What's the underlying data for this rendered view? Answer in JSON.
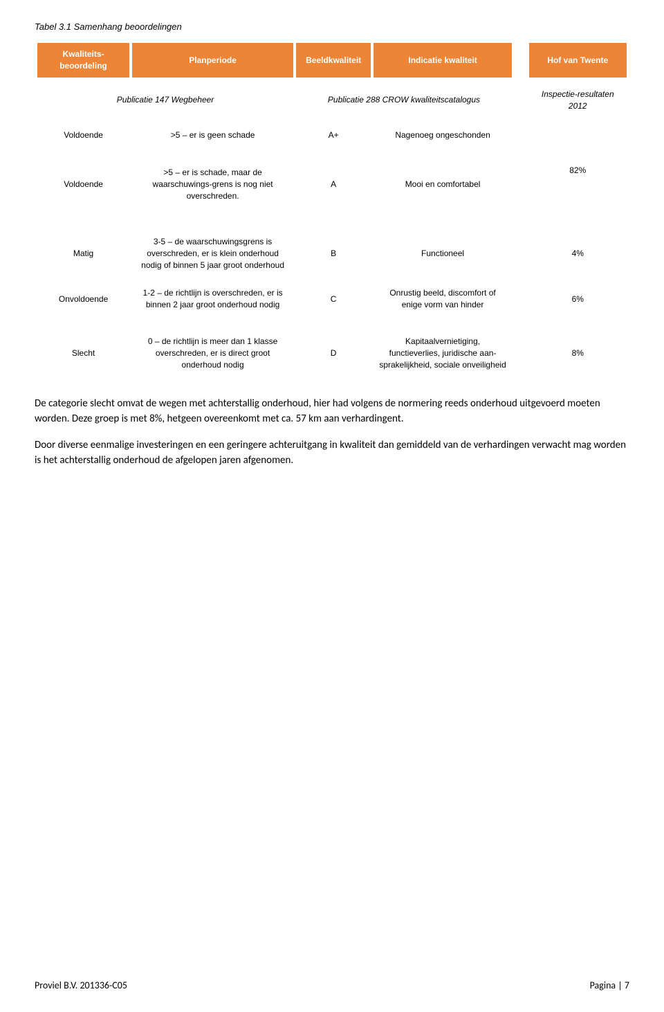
{
  "caption": "Tabel 3.1 Samenhang beoordelingen",
  "colors": {
    "header_bg": "#ee8435",
    "header_fg": "#ffffff",
    "page_bg": "#ffffff",
    "text": "#000000"
  },
  "fonts": {
    "table_family": "Verdana, Geneva, sans-serif",
    "body_family": "Calibri, Arial, sans-serif",
    "caption_size_pt": 10,
    "table_size_pt": 9,
    "body_size_pt": 11
  },
  "table": {
    "type": "table",
    "column_widths_pct": [
      16,
      28,
      13,
      24,
      2,
      17
    ],
    "headers": [
      "Kwaliteits-beoordeling",
      "Planperiode",
      "Beeldkwaliteit",
      "Indicatie kwaliteit",
      "Hof van Twente"
    ],
    "section_header": {
      "left": "Publicatie 147 Wegbeheer",
      "mid": "Publicatie 288 CROW kwaliteitscatalogus",
      "right": "Inspectie-resultaten 2012"
    },
    "rows": [
      {
        "k": "Voldoende",
        "p": ">5 – er is geen schade",
        "b": "A+",
        "i": "Nagenoeg ongeschonden",
        "r": "",
        "rowspan_r": false
      },
      {
        "k": "Voldoende",
        "p": ">5 – er is schade, maar de waarschuwings-grens is nog niet overschreden.",
        "b": "A",
        "i": "Mooi en comfortabel",
        "r": "82%"
      },
      {
        "k": "Matig",
        "p": "3-5 – de waarschuwingsgrens is overschreden, er is klein onderhoud nodig of binnen 5 jaar groot onderhoud",
        "b": "B",
        "i": "Functioneel",
        "r": "4%"
      },
      {
        "k": "Onvoldoende",
        "p": "1-2 – de richtlijn is overschreden, er is binnen 2 jaar groot onderhoud nodig",
        "b": "C",
        "i": "Onrustig beeld, discomfort of enige vorm van hinder",
        "r": "6%"
      },
      {
        "k": "Slecht",
        "p": "0 – de richtlijn is meer dan 1 klasse overschreden, er is direct groot onderhoud nodig",
        "b": "D",
        "i": "Kapitaalvernietiging, functieverlies, juridische aan-sprakelijkheid, sociale onveiligheid",
        "r": "8%"
      }
    ]
  },
  "body": {
    "p1": "De categorie slecht omvat de wegen met achterstallig onderhoud, hier had volgens de normering reeds onderhoud uitgevoerd moeten worden. Deze groep is met 8%, hetgeen overeenkomt met ca. 57 km aan verhardingent.",
    "p2": "Door diverse eenmalige investeringen en een geringere achteruitgang in kwaliteit dan gemiddeld van de verhardingen verwacht mag worden is het achterstallig onderhoud de afgelopen jaren afgenomen."
  },
  "footer": {
    "left": "Proviel B.V. 201336-C05",
    "right": "Pagina | 7"
  }
}
